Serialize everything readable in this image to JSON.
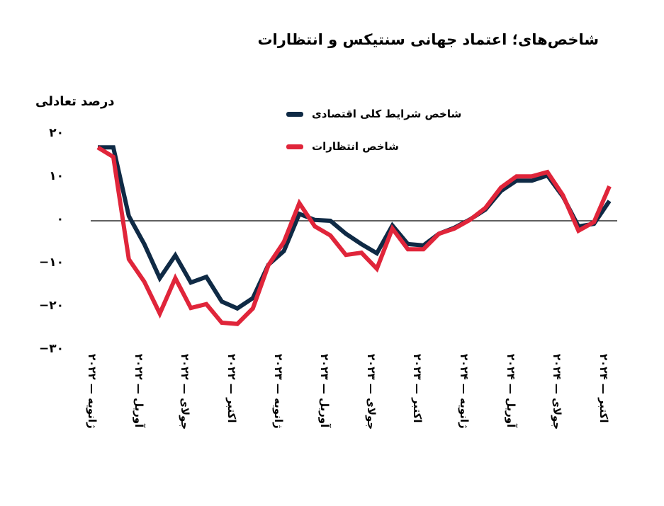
{
  "title": "شاخص‌های؛ اعتماد جهانی سنتیکس و انتظارات",
  "y_axis_title": "درصد تعادلی",
  "legend": [
    {
      "label": "شاخص شرایط کلی اقتصادی",
      "color": "#0f2a45"
    },
    {
      "label": "شاخص انتظارات",
      "color": "#e0253a"
    }
  ],
  "y_ticks": [
    {
      "value": 20,
      "label": "۲۰"
    },
    {
      "value": 10,
      "label": "۱۰"
    },
    {
      "value": 0,
      "label": "۰"
    },
    {
      "value": -10,
      "label": "−۱۰"
    },
    {
      "value": -20,
      "label": "−۲۰"
    },
    {
      "value": -30,
      "label": "−۳۰"
    }
  ],
  "x_ticks": [
    {
      "index": 0,
      "label": "ژانویه — ۲۰۲۲"
    },
    {
      "index": 3,
      "label": "آوریل — ۲۰۲۲"
    },
    {
      "index": 6,
      "label": "جولای — ۲۰۲۲"
    },
    {
      "index": 9,
      "label": "اکتبر — ۲۰۲۲"
    },
    {
      "index": 12,
      "label": "ژانویه — ۲۰۲۳"
    },
    {
      "index": 15,
      "label": "آوریل — ۲۰۲۳"
    },
    {
      "index": 18,
      "label": "جولای — ۲۰۲۳"
    },
    {
      "index": 21,
      "label": "اکتبر — ۲۰۲۳"
    },
    {
      "index": 24,
      "label": "ژانویه — ۲۰۲۴"
    },
    {
      "index": 27,
      "label": "آوریل — ۲۰۲۴"
    },
    {
      "index": 30,
      "label": "جولای — ۲۰۲۴"
    },
    {
      "index": 33,
      "label": "اکتبر — ۲۰۲۴"
    }
  ],
  "chart_data": {
    "type": "line",
    "title": "شاخص‌های؛ اعتماد جهانی سنتیکس و انتظارات",
    "xlabel": "",
    "ylabel": "درصد تعادلی",
    "ylim": [
      -30,
      20
    ],
    "grid": false,
    "zero_line": true,
    "legend_position": "top-center",
    "x": [
      "2022-01",
      "2022-02",
      "2022-03",
      "2022-04",
      "2022-05",
      "2022-06",
      "2022-07",
      "2022-08",
      "2022-09",
      "2022-10",
      "2022-11",
      "2022-12",
      "2023-01",
      "2023-02",
      "2023-03",
      "2023-04",
      "2023-05",
      "2023-06",
      "2023-07",
      "2023-08",
      "2023-09",
      "2023-10",
      "2023-11",
      "2023-12",
      "2024-01",
      "2024-02",
      "2024-03",
      "2024-04",
      "2024-05",
      "2024-06",
      "2024-07",
      "2024-08",
      "2024-09",
      "2024-10"
    ],
    "x_tick_labels": [
      "ژانویه — ۲۰۲۲",
      "آوریل — ۲۰۲۲",
      "جولای — ۲۰۲۲",
      "اکتبر — ۲۰۲۲",
      "ژانویه — ۲۰۲۳",
      "آوریل — ۲۰۲۳",
      "جولای — ۲۰۲۳",
      "اکتبر — ۲۰۲۳",
      "ژانویه — ۲۰۲۴",
      "آوریل — ۲۰۲۴",
      "جولای — ۲۰۲۴",
      "اکتبر — ۲۰۲۴"
    ],
    "series": [
      {
        "name": "شاخص شرایط کلی اقتصادی",
        "color": "#0f2a45",
        "values": [
          17.0,
          17.0,
          1.1,
          -5.4,
          -13.3,
          -8.0,
          -14.3,
          -13.0,
          -18.7,
          -20.3,
          -17.9,
          -10.2,
          -7.0,
          1.6,
          0.2,
          0.0,
          -3.0,
          -5.4,
          -7.5,
          -1.1,
          -5.4,
          -5.7,
          -3.0,
          -1.6,
          0.3,
          2.6,
          6.9,
          9.3,
          9.3,
          10.5,
          5.6,
          -1.3,
          -0.7,
          4.6
        ]
      },
      {
        "name": "شاخص انتظارات",
        "color": "#e0253a",
        "values": [
          17.0,
          14.8,
          -8.9,
          -14.1,
          -21.5,
          -13.3,
          -20.2,
          -19.3,
          -23.6,
          -23.9,
          -20.3,
          -10.3,
          -4.9,
          4.1,
          -1.3,
          -3.4,
          -7.9,
          -7.4,
          -11.1,
          -1.8,
          -6.6,
          -6.6,
          -3.0,
          -1.8,
          0.2,
          3.0,
          7.7,
          10.3,
          10.3,
          11.3,
          5.9,
          -2.3,
          -0.3,
          8.0
        ]
      }
    ]
  }
}
